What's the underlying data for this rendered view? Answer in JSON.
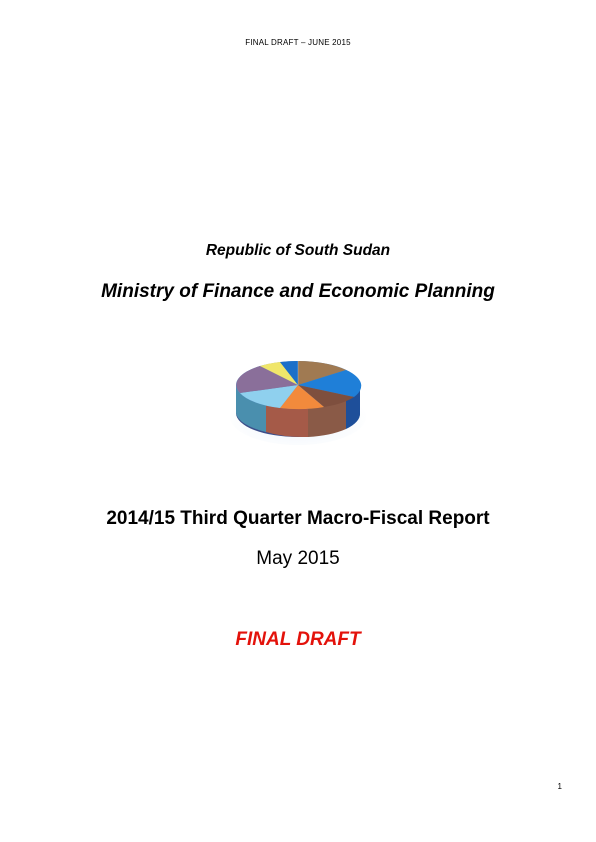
{
  "header": {
    "text": "FINAL DRAFT – JUNE 2015"
  },
  "cover": {
    "republic": "Republic of South Sudan",
    "ministry": "Ministry of Finance and Economic Planning",
    "report_title": "2014/15 Third Quarter Macro-Fiscal Report",
    "date": "May 2015",
    "draft_label": "FINAL DRAFT"
  },
  "logo": {
    "icon": "3d-pie-chart-icon"
  },
  "footer": {
    "page_number": "1"
  },
  "colors": {
    "draft_label": "#e3120b",
    "text": "#000000"
  }
}
